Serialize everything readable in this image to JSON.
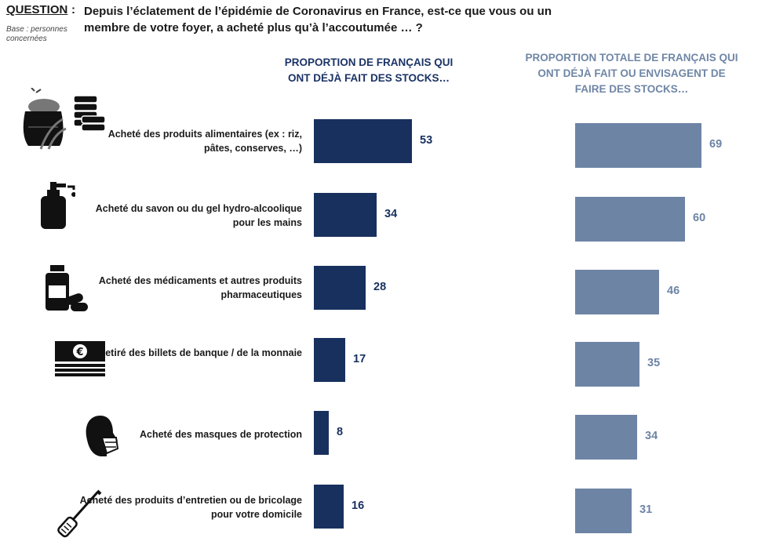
{
  "question": {
    "label": "QUESTION",
    "colon": ":",
    "text": "Depuis l’éclatement de l’épidémie de Coronavirus en France, est-ce que vous ou un membre de votre foyer, a acheté plus qu’à l’accoutumée … ?",
    "base": "Base : personnes concernées"
  },
  "colors": {
    "series1": "#17305e",
    "series2": "#6d84a5"
  },
  "chart_data": {
    "type": "bar",
    "orientation": "horizontal",
    "title": "",
    "categories": [
      "Acheté des produits alimentaires (ex : riz, pâtes, conserves, …)",
      "Acheté du savon ou du gel hydro-alcoolique pour les mains",
      "Acheté des médicaments et autres produits pharmaceutiques",
      "Retiré des billets de banque / de la monnaie",
      "Acheté des masques de protection",
      "Acheté des produits d’entretien ou de bricolage pour votre domicile"
    ],
    "icons": [
      "food-sack-coins-icon",
      "soap-dispenser-icon",
      "medicine-pills-icon",
      "banknotes-icon",
      "face-mask-icon",
      "screwdriver-icon"
    ],
    "series": [
      {
        "name": "PROPORTION DE FRANÇAIS QUI ONT DÉJÀ FAIT DES STOCKS…",
        "values": [
          53,
          34,
          28,
          17,
          8,
          16
        ]
      },
      {
        "name": "PROPORTION TOTALE DE FRANÇAIS QUI ONT DÉJÀ FAIT OU ENVISAGENT DE FAIRE DES STOCKS…",
        "values": [
          69,
          60,
          46,
          35,
          34,
          31
        ]
      }
    ],
    "xlim": [
      0,
      100
    ],
    "grid": false,
    "legend": "column-headers-top"
  }
}
